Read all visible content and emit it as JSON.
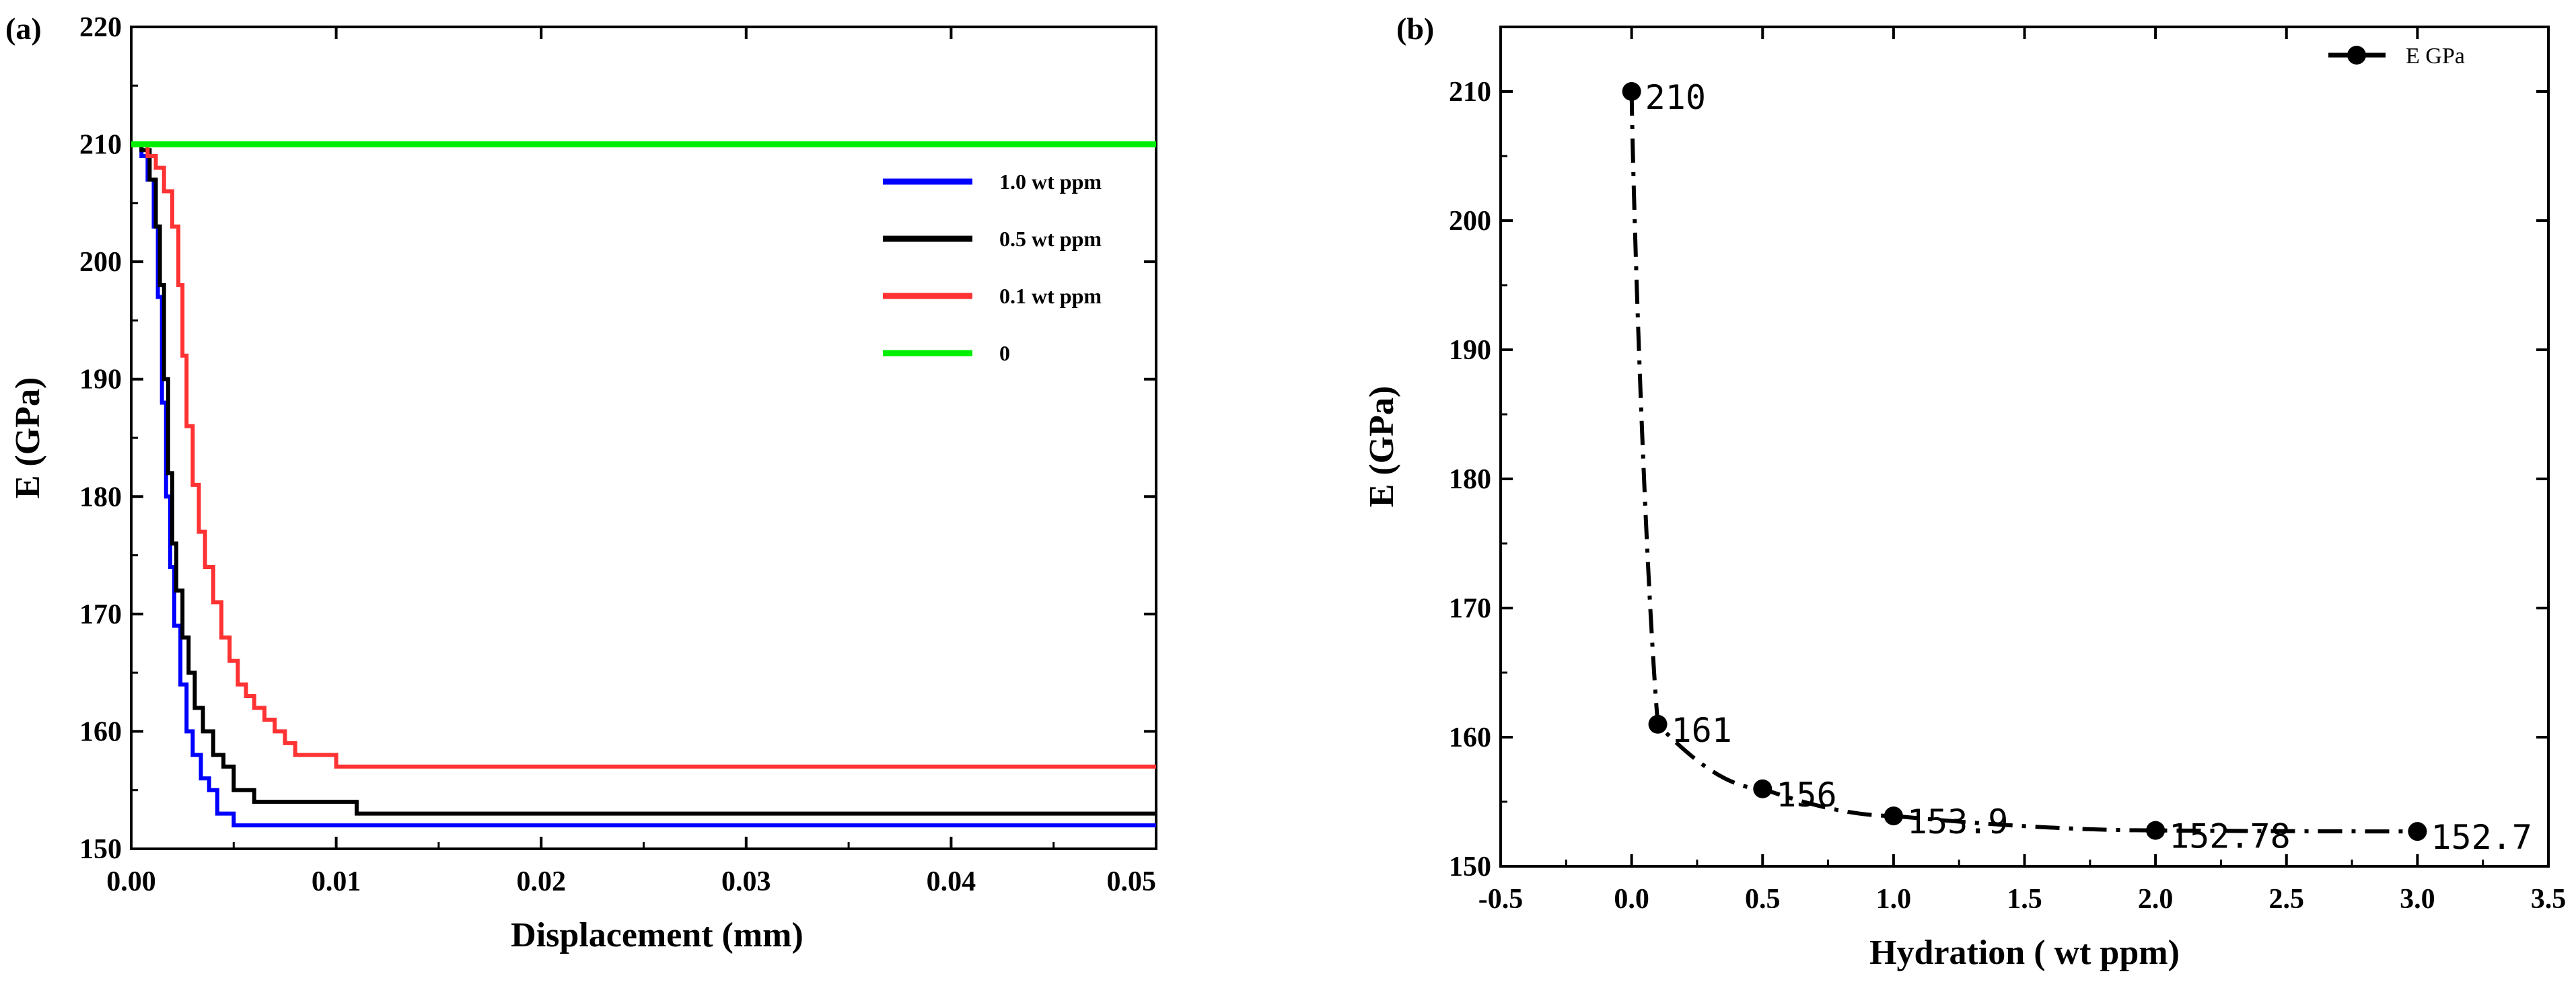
{
  "chart_data": [
    {
      "panel": "(a)",
      "type": "line",
      "xlabel": "Displacement (mm)",
      "ylabel": "E (GPa)",
      "xlim": [
        0,
        0.05
      ],
      "ylim": [
        150,
        220
      ],
      "xticks": [
        "0.00",
        "0.01",
        "0.02",
        "0.03",
        "0.04",
        "0.05"
      ],
      "yticks": [
        "150",
        "160",
        "170",
        "180",
        "190",
        "200",
        "210",
        "220"
      ],
      "legend_position": "top-right",
      "series": [
        {
          "name": "1.0 wt ppm",
          "color": "#0000ff",
          "x": [
            0,
            0.0005,
            0.0008,
            0.0011,
            0.0013,
            0.0015,
            0.0017,
            0.0019,
            0.0021,
            0.0024,
            0.0027,
            0.003,
            0.0034,
            0.0038,
            0.0042,
            0.0046,
            0.005,
            0.0055,
            0.05
          ],
          "y": [
            210,
            209,
            207,
            203,
            197,
            188,
            180,
            174,
            169,
            164,
            160,
            158,
            156,
            155,
            153,
            153,
            152,
            152,
            152
          ]
        },
        {
          "name": "0.5 wt ppm",
          "color": "#000000",
          "x": [
            0,
            0.0005,
            0.0009,
            0.0012,
            0.0014,
            0.0016,
            0.0018,
            0.002,
            0.0022,
            0.0025,
            0.0028,
            0.0031,
            0.0035,
            0.004,
            0.0045,
            0.005,
            0.0055,
            0.006,
            0.0065,
            0.0105,
            0.011,
            0.05
          ],
          "y": [
            210,
            209.5,
            207,
            203,
            198,
            190,
            182,
            176,
            172,
            168,
            165,
            162,
            160,
            158,
            157,
            155,
            155,
            154,
            154,
            154,
            153,
            153
          ]
        },
        {
          "name": "0.1 wt ppm",
          "color": "#ff3333",
          "x": [
            0,
            0.0008,
            0.0012,
            0.0016,
            0.002,
            0.0023,
            0.0025,
            0.0027,
            0.003,
            0.0033,
            0.0036,
            0.004,
            0.0044,
            0.0048,
            0.0052,
            0.0056,
            0.006,
            0.0065,
            0.007,
            0.0075,
            0.008,
            0.0098,
            0.01,
            0.05
          ],
          "y": [
            210,
            209,
            208,
            206,
            203,
            198,
            192,
            186,
            181,
            177,
            174,
            171,
            168,
            166,
            164,
            163,
            162,
            161,
            160,
            159,
            158,
            158,
            157,
            157
          ]
        },
        {
          "name": "0",
          "color": "#00ee00",
          "x": [
            0,
            0.05
          ],
          "y": [
            210,
            210
          ]
        }
      ]
    },
    {
      "panel": "(b)",
      "type": "line",
      "xlabel": "Hydration ( wt ppm)",
      "ylabel": "E (GPa)",
      "xlim": [
        -0.5,
        3.5
      ],
      "ylim": [
        150,
        215
      ],
      "xticks": [
        "-0.5",
        "0.0",
        "0.5",
        "1.0",
        "1.5",
        "2.0",
        "2.5",
        "3.0",
        "3.5"
      ],
      "yticks": [
        "150",
        "160",
        "170",
        "180",
        "190",
        "200",
        "210"
      ],
      "legend_position": "top-right",
      "series": [
        {
          "name": "E GPa",
          "color": "#000000",
          "line_style": "dash-dot",
          "marker": "circle",
          "x": [
            0,
            0.1,
            0.5,
            1.0,
            2.0,
            3.0
          ],
          "y": [
            210,
            161,
            156,
            153.9,
            152.78,
            152.7
          ],
          "labels": [
            "210",
            "161",
            "156",
            "153.9",
            "152.78",
            "152.7"
          ]
        }
      ]
    }
  ]
}
